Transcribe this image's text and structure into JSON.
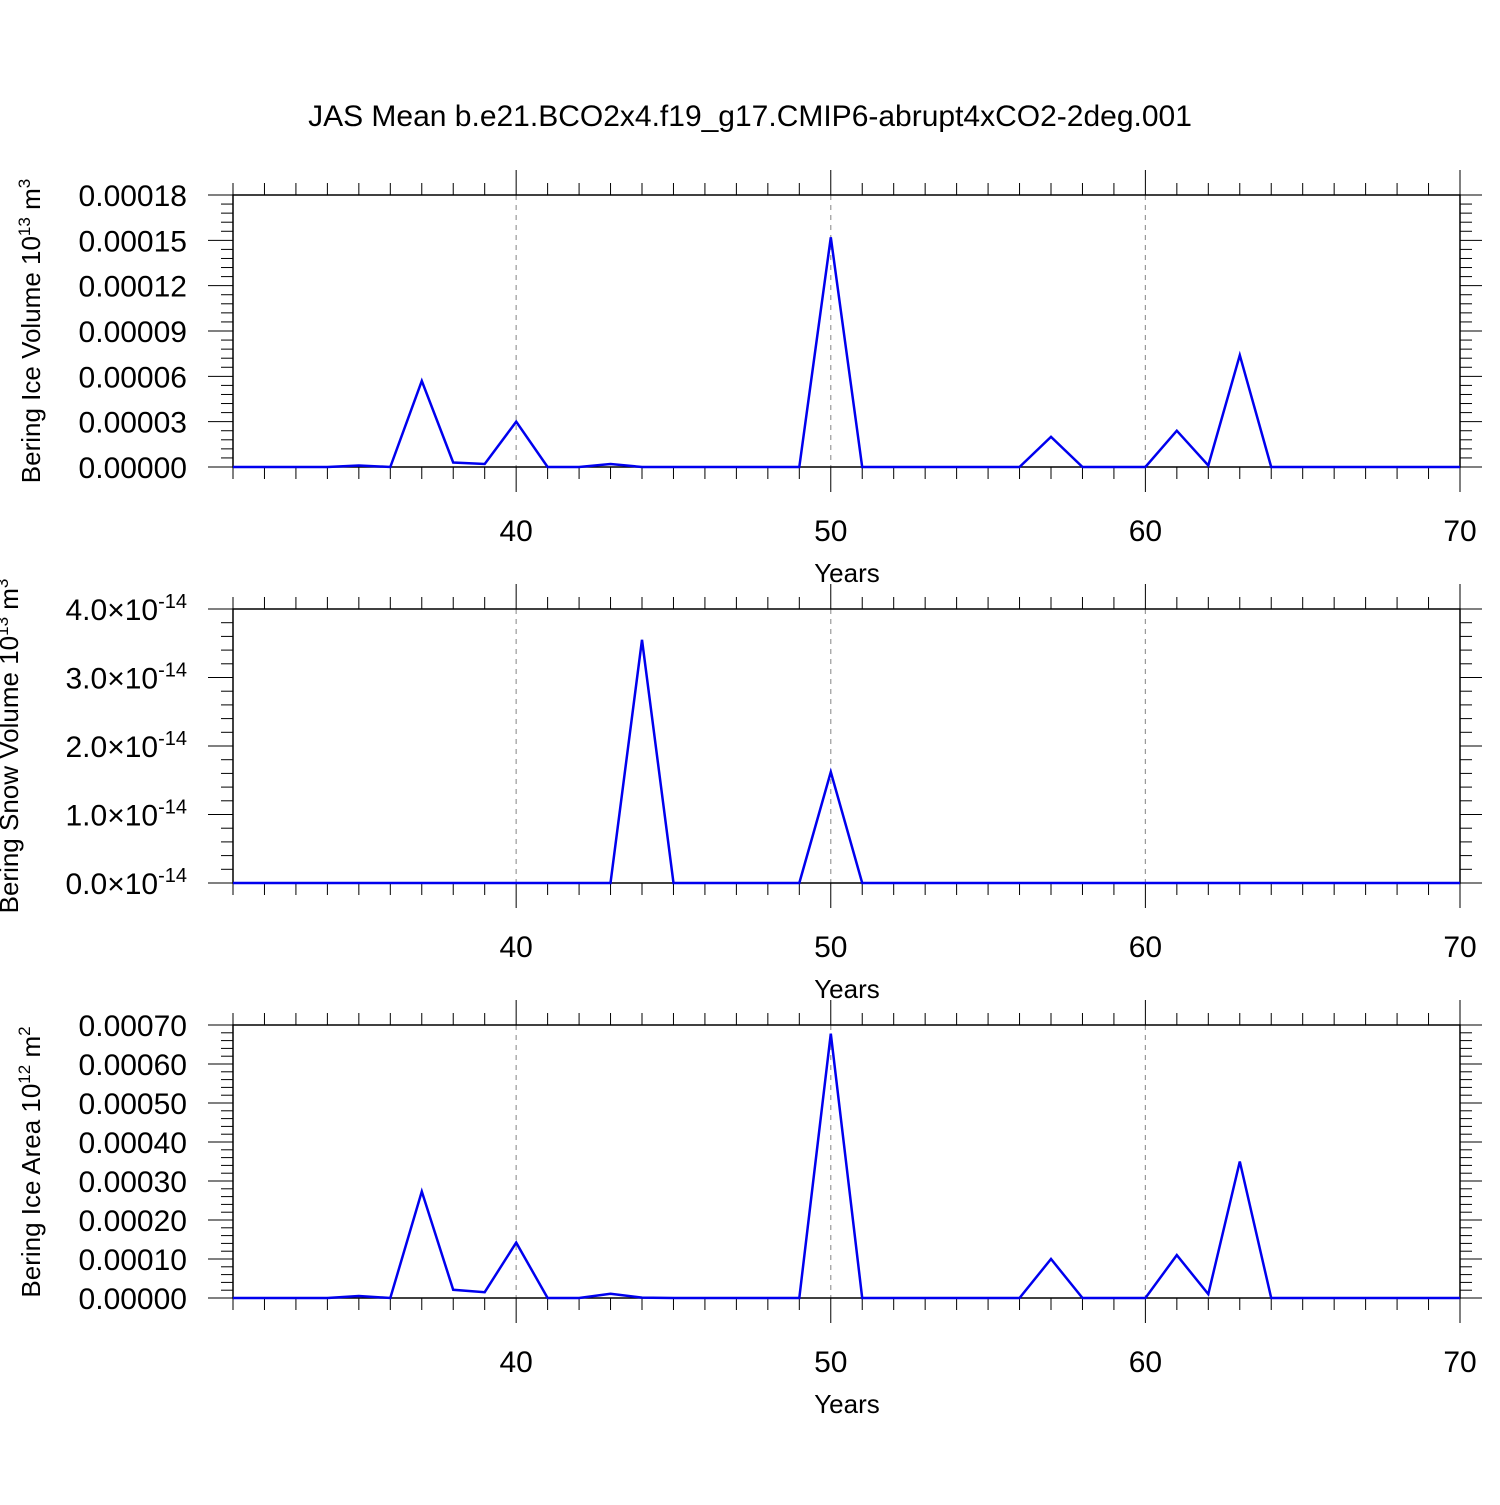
{
  "title": "JAS Mean b.e21.BCO2x4.f19_g17.CMIP6-abrupt4xCO2-2deg.001",
  "line_color": "#0000ee",
  "chart_data": [
    {
      "type": "line",
      "ylabel": "Bering Ice Volume 10",
      "ylabel_exp": "13",
      "ylabel_unit": "m",
      "ylabel_unit_exp": "3",
      "xlabel": "Years",
      "xlim": [
        31,
        70
      ],
      "ylim": [
        0,
        0.00018
      ],
      "xticks": [
        40,
        50,
        60,
        70
      ],
      "xtick_labels": [
        "40",
        "50",
        "60",
        "70"
      ],
      "yticks": [
        0,
        3e-05,
        6e-05,
        9e-05,
        0.00012,
        0.00015,
        0.00018
      ],
      "ytick_labels": [
        "0.00000",
        "0.00003",
        "0.00006",
        "0.00009",
        "0.00012",
        "0.00015",
        "0.00018"
      ],
      "gridlines_x": [
        40,
        50,
        60
      ],
      "series": [
        {
          "x": [
            31,
            32,
            33,
            34,
            35,
            36,
            37,
            38,
            39,
            40,
            41,
            42,
            43,
            44,
            45,
            46,
            47,
            48,
            49,
            50,
            51,
            52,
            53,
            54,
            55,
            56,
            57,
            58,
            59,
            60,
            61,
            62,
            63,
            64,
            65,
            66,
            67,
            68,
            69,
            70
          ],
          "values": [
            0,
            0,
            0,
            0,
            1e-06,
            0,
            5.7e-05,
            3e-06,
            2e-06,
            3e-05,
            0,
            0,
            2e-06,
            0,
            0,
            0,
            0,
            0,
            0,
            0.000152,
            0,
            0,
            0,
            0,
            0,
            0,
            2e-05,
            0,
            0,
            0,
            2.4e-05,
            1e-06,
            7.4e-05,
            0,
            0,
            0,
            0,
            0,
            0,
            0
          ]
        }
      ]
    },
    {
      "type": "line",
      "ylabel": "Bering Snow Volume 10",
      "ylabel_exp": "13",
      "ylabel_unit": "m",
      "ylabel_unit_exp": "3",
      "xlabel": "Years",
      "xlim": [
        31,
        70
      ],
      "ylim": [
        0,
        4e-14
      ],
      "xticks": [
        40,
        50,
        60,
        70
      ],
      "xtick_labels": [
        "40",
        "50",
        "60",
        "70"
      ],
      "yticks": [
        0,
        1e-14,
        2e-14,
        3e-14,
        4e-14
      ],
      "ytick_mantissas": [
        "0.0",
        "1.0",
        "2.0",
        "3.0",
        "4.0"
      ],
      "ytick_times": "×",
      "ytick_base": "10",
      "ytick_exp": "-14",
      "gridlines_x": [
        40,
        50,
        60
      ],
      "series": [
        {
          "x": [
            31,
            32,
            33,
            34,
            35,
            36,
            37,
            38,
            39,
            40,
            41,
            42,
            43,
            44,
            45,
            46,
            47,
            48,
            49,
            50,
            51,
            52,
            53,
            54,
            55,
            56,
            57,
            58,
            59,
            60,
            61,
            62,
            63,
            64,
            65,
            66,
            67,
            68,
            69,
            70
          ],
          "values": [
            0,
            0,
            0,
            0,
            0,
            0,
            0,
            0,
            0,
            0,
            0,
            0,
            0,
            3.55e-14,
            0,
            0,
            0,
            0,
            0,
            1.62e-14,
            0,
            0,
            0,
            0,
            0,
            0,
            0,
            0,
            0,
            0,
            0,
            0,
            0,
            0,
            0,
            0,
            0,
            0,
            0,
            0
          ]
        }
      ]
    },
    {
      "type": "line",
      "ylabel": "Bering Ice Area 10",
      "ylabel_exp": "12",
      "ylabel_unit": "m",
      "ylabel_unit_exp": "2",
      "xlabel": "Years",
      "xlim": [
        31,
        70
      ],
      "ylim": [
        0,
        0.0007
      ],
      "xticks": [
        40,
        50,
        60,
        70
      ],
      "xtick_labels": [
        "40",
        "50",
        "60",
        "70"
      ],
      "yticks": [
        0,
        0.0001,
        0.0002,
        0.0003,
        0.0004,
        0.0005,
        0.0006,
        0.0007
      ],
      "ytick_labels": [
        "0.00000",
        "0.00010",
        "0.00020",
        "0.00030",
        "0.00040",
        "0.00050",
        "0.00060",
        "0.00070"
      ],
      "gridlines_x": [
        40,
        50,
        60
      ],
      "series": [
        {
          "x": [
            31,
            32,
            33,
            34,
            35,
            36,
            37,
            38,
            39,
            40,
            41,
            42,
            43,
            44,
            45,
            46,
            47,
            48,
            49,
            50,
            51,
            52,
            53,
            54,
            55,
            56,
            57,
            58,
            59,
            60,
            61,
            62,
            63,
            64,
            65,
            66,
            67,
            68,
            69,
            70
          ],
          "values": [
            0,
            0,
            0,
            0,
            5e-06,
            0,
            0.000273,
            2.1e-05,
            1.5e-05,
            0.000142,
            0,
            0,
            1.1e-05,
            1e-06,
            0,
            0,
            0,
            0,
            0,
            0.000678,
            0,
            0,
            0,
            0,
            0,
            0,
            0.0001,
            0,
            0,
            0,
            0.00011,
            1e-05,
            0.00035,
            0,
            0,
            0,
            0,
            0,
            0,
            0
          ]
        }
      ]
    }
  ]
}
